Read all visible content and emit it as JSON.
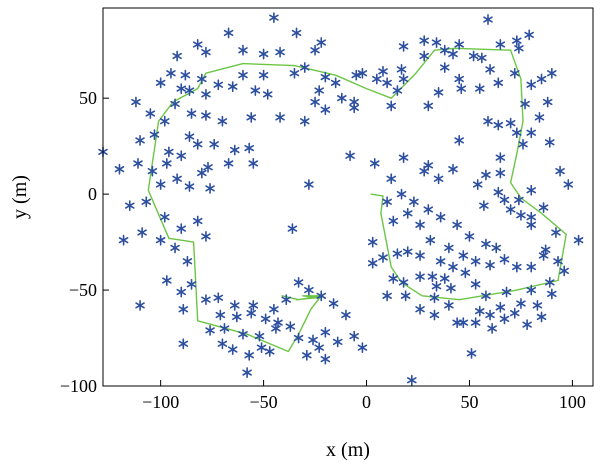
{
  "chart_data": {
    "type": "scatter",
    "title": "",
    "xlabel": "x (m)",
    "ylabel": "y (m)",
    "xlim": [
      -128,
      110
    ],
    "ylim": [
      -100,
      97
    ],
    "xticks": [
      -100,
      -50,
      0,
      50,
      100
    ],
    "yticks": [
      -100,
      -50,
      0,
      50
    ],
    "tick_labels": {
      "x": [
        "−100",
        "−50",
        "0",
        "50",
        "100"
      ],
      "y": [
        "−100",
        "−50",
        "0",
        "50"
      ]
    },
    "grid": false,
    "legend": "none",
    "colors": {
      "points": "#2d4f9f",
      "path": "#6cc644"
    },
    "series": [
      {
        "marker": "asterisk",
        "points": [
          [
            -45,
            92
          ],
          [
            -67,
            84
          ],
          [
            -34,
            84
          ],
          [
            -22,
            79
          ],
          [
            -82,
            78
          ],
          [
            -92,
            72
          ],
          [
            -78,
            74
          ],
          [
            -60,
            75
          ],
          [
            -50,
            73
          ],
          [
            -42,
            74
          ],
          [
            -25,
            75
          ],
          [
            -95,
            63
          ],
          [
            -88,
            62
          ],
          [
            -80,
            60
          ],
          [
            -60,
            62
          ],
          [
            -50,
            62
          ],
          [
            -35,
            63
          ],
          [
            -30,
            66
          ],
          [
            -15,
            58
          ],
          [
            -5,
            62
          ],
          [
            -20,
            61
          ],
          [
            5,
            60
          ],
          [
            18,
            60
          ],
          [
            10,
            58
          ],
          [
            38,
            66
          ],
          [
            45,
            60
          ],
          [
            -100,
            58
          ],
          [
            -90,
            55
          ],
          [
            -86,
            54
          ],
          [
            -78,
            52
          ],
          [
            -72,
            57
          ],
          [
            -65,
            56
          ],
          [
            -54,
            54
          ],
          [
            -48,
            52
          ],
          [
            -23,
            54
          ],
          [
            -12,
            50
          ],
          [
            -6,
            48
          ],
          [
            -93,
            47
          ],
          [
            -85,
            42
          ],
          [
            -78,
            41
          ],
          [
            -70,
            38
          ],
          [
            -56,
            40
          ],
          [
            -42,
            40
          ],
          [
            -30,
            38
          ],
          [
            -20,
            44
          ],
          [
            -6,
            45
          ],
          [
            12,
            46
          ],
          [
            -112,
            48
          ],
          [
            -105,
            42
          ],
          [
            -98,
            38
          ],
          [
            -86,
            30
          ],
          [
            -74,
            26
          ],
          [
            -64,
            23
          ],
          [
            -57,
            24
          ],
          [
            -110,
            28
          ],
          [
            -103,
            31
          ],
          [
            -96,
            22
          ],
          [
            -90,
            20
          ],
          [
            -82,
            26
          ],
          [
            -77,
            14
          ],
          [
            -55,
            16
          ],
          [
            -67,
            16
          ],
          [
            -128,
            22
          ],
          [
            -120,
            13
          ],
          [
            -111,
            16
          ],
          [
            -104,
            12
          ],
          [
            -97,
            16
          ],
          [
            -92,
            8
          ],
          [
            -86,
            4
          ],
          [
            -80,
            11
          ],
          [
            -76,
            3
          ],
          [
            -100,
            5
          ],
          [
            -107,
            -4
          ],
          [
            -98,
            -12
          ],
          [
            -90,
            -18
          ],
          [
            -82,
            -14
          ],
          [
            -28,
            5
          ],
          [
            -8,
            20
          ],
          [
            4,
            16
          ],
          [
            -115,
            -6
          ],
          [
            -118,
            -24
          ],
          [
            -109,
            -20
          ],
          [
            -100,
            -24
          ],
          [
            -93,
            -28
          ],
          [
            -87,
            -35
          ],
          [
            -78,
            -22
          ],
          [
            -85,
            -47
          ],
          [
            -97,
            -45
          ],
          [
            -90,
            -51
          ],
          [
            -110,
            -58
          ],
          [
            -89,
            -60
          ],
          [
            -78,
            -55
          ],
          [
            -72,
            -54
          ],
          [
            -64,
            -58
          ],
          [
            -55,
            -58
          ],
          [
            -45,
            -60
          ],
          [
            -36,
            -18
          ],
          [
            -33,
            -46
          ],
          [
            -28,
            -50
          ],
          [
            -22,
            -53
          ],
          [
            -16,
            -57
          ],
          [
            -10,
            -63
          ],
          [
            -6,
            -74
          ],
          [
            -2,
            -80
          ],
          [
            -71,
            -63
          ],
          [
            -63,
            -64
          ],
          [
            -56,
            -62
          ],
          [
            -49,
            -65
          ],
          [
            -43,
            -67
          ],
          [
            -76,
            -71
          ],
          [
            -69,
            -70
          ],
          [
            -60,
            -73
          ],
          [
            -52,
            -74
          ],
          [
            -44,
            -70
          ],
          [
            -37,
            -69
          ],
          [
            -33,
            -75
          ],
          [
            -26,
            -76
          ],
          [
            -20,
            -72
          ],
          [
            -14,
            -77
          ],
          [
            -29,
            -84
          ],
          [
            -23,
            -80
          ],
          [
            -47,
            -82
          ],
          [
            -65,
            -81
          ],
          [
            -57,
            -84
          ],
          [
            -51,
            -80
          ],
          [
            -70,
            -78
          ],
          [
            -89,
            -78
          ],
          [
            -58,
            -93
          ],
          [
            -20,
            -86
          ],
          [
            22,
            -97
          ],
          [
            -39,
            -55
          ],
          [
            -2,
            63
          ],
          [
            8,
            64
          ],
          [
            15,
            54
          ],
          [
            -25,
            48
          ],
          [
            17,
            65
          ],
          [
            28,
            72
          ],
          [
            34,
            79
          ],
          [
            45,
            78
          ],
          [
            56,
            71
          ],
          [
            65,
            78
          ],
          [
            73,
            80
          ],
          [
            79,
            83
          ],
          [
            59,
            91
          ],
          [
            42,
            73
          ],
          [
            28,
            80
          ],
          [
            18,
            77
          ],
          [
            38,
            75
          ],
          [
            52,
            72
          ],
          [
            60,
            65
          ],
          [
            74,
            76
          ],
          [
            90,
            63
          ],
          [
            85,
            60
          ],
          [
            80,
            57
          ],
          [
            72,
            63
          ],
          [
            64,
            58
          ],
          [
            55,
            55
          ],
          [
            46,
            55
          ],
          [
            35,
            53
          ],
          [
            30,
            46
          ],
          [
            77,
            47
          ],
          [
            88,
            48
          ],
          [
            84,
            40
          ],
          [
            70,
            37
          ],
          [
            64,
            36
          ],
          [
            59,
            38
          ],
          [
            73,
            32
          ],
          [
            80,
            32
          ],
          [
            89,
            27
          ],
          [
            76,
            26
          ],
          [
            94,
            12
          ],
          [
            65,
            19
          ],
          [
            45,
            28
          ],
          [
            30,
            15
          ],
          [
            12,
            8
          ],
          [
            18,
            19
          ],
          [
            28,
            12
          ],
          [
            35,
            8
          ],
          [
            42,
            13
          ],
          [
            58,
            10
          ],
          [
            64,
            1
          ],
          [
            67,
            -3
          ],
          [
            74,
            -3
          ],
          [
            80,
            -12
          ],
          [
            86,
            -7
          ],
          [
            98,
            5
          ],
          [
            80,
            2
          ],
          [
            65,
            11
          ],
          [
            54,
            5
          ],
          [
            57,
            -6
          ],
          [
            70,
            -8
          ],
          [
            75,
            -11
          ],
          [
            80,
            -16
          ],
          [
            92,
            -20
          ],
          [
            103,
            -24
          ],
          [
            87,
            -29
          ],
          [
            10,
            -4
          ],
          [
            17,
            0
          ],
          [
            23,
            -4
          ],
          [
            30,
            -8
          ],
          [
            36,
            -12
          ],
          [
            44,
            -16
          ],
          [
            50,
            -22
          ],
          [
            58,
            -26
          ],
          [
            63,
            -28
          ],
          [
            67,
            -34
          ],
          [
            73,
            -38
          ],
          [
            80,
            -38
          ],
          [
            86,
            -32
          ],
          [
            93,
            -35
          ],
          [
            96,
            -40
          ],
          [
            89,
            -46
          ],
          [
            80,
            -50
          ],
          [
            68,
            -51
          ],
          [
            58,
            -53
          ],
          [
            13,
            -14
          ],
          [
            20,
            -10
          ],
          [
            26,
            -16
          ],
          [
            31,
            -24
          ],
          [
            40,
            -28
          ],
          [
            47,
            -32
          ],
          [
            53,
            -35
          ],
          [
            60,
            -37
          ],
          [
            3,
            -25
          ],
          [
            3,
            -36
          ],
          [
            8,
            -33
          ],
          [
            15,
            -31
          ],
          [
            20,
            -30
          ],
          [
            26,
            -32
          ],
          [
            36,
            -35
          ],
          [
            42,
            -38
          ],
          [
            48,
            -41
          ],
          [
            53,
            -47
          ],
          [
            13,
            -44
          ],
          [
            18,
            -46
          ],
          [
            26,
            -43
          ],
          [
            32,
            -43
          ],
          [
            38,
            -44
          ],
          [
            55,
            -61
          ],
          [
            60,
            -63
          ],
          [
            65,
            -59
          ],
          [
            72,
            -62
          ],
          [
            78,
            -68
          ],
          [
            85,
            -64
          ],
          [
            26,
            -60
          ],
          [
            33,
            -63
          ],
          [
            40,
            -58
          ],
          [
            47,
            -67
          ],
          [
            53,
            -67
          ],
          [
            61,
            -70
          ],
          [
            51,
            -83
          ],
          [
            44,
            -67
          ],
          [
            19,
            -53
          ],
          [
            10,
            -53
          ],
          [
            33,
            -54
          ],
          [
            67,
            -65
          ],
          [
            75,
            -57
          ],
          [
            83,
            -58
          ],
          [
            90,
            -52
          ],
          [
            41,
            -49
          ],
          [
            34,
            -48
          ]
        ]
      },
      {
        "name": "",
        "line": true,
        "points": [
          [
            -106,
            2
          ],
          [
            -96,
            -23
          ],
          [
            -84,
            -25
          ],
          [
            -83,
            -45
          ],
          [
            -82,
            -66
          ],
          [
            -58,
            -73
          ],
          [
            -38,
            -82
          ],
          [
            -33,
            -73
          ],
          [
            -27,
            -60
          ],
          [
            -22,
            -53
          ],
          [
            -31,
            -53
          ],
          [
            -24,
            -54
          ],
          [
            -34,
            -55
          ],
          [
            -33,
            -55
          ],
          [
            -41,
            -53
          ],
          [
            -41,
            -53
          ],
          [
            -33,
            -55
          ],
          [
            -22,
            -53
          ],
          [
            -106,
            2
          ],
          [
            -101,
            38
          ],
          [
            -94,
            48
          ],
          [
            -82,
            55
          ],
          [
            -78,
            63
          ],
          [
            -60,
            68
          ],
          [
            -35,
            67
          ],
          [
            -15,
            62
          ],
          [
            0,
            55
          ],
          [
            12,
            50
          ],
          [
            24,
            63
          ],
          [
            33,
            75
          ],
          [
            43,
            76
          ],
          [
            70,
            75
          ],
          [
            75,
            60
          ],
          [
            76,
            38
          ],
          [
            73,
            21
          ],
          [
            70,
            6
          ],
          [
            75,
            -2
          ],
          [
            85,
            -10
          ],
          [
            97,
            -21
          ],
          [
            93,
            -45
          ],
          [
            73,
            -50
          ],
          [
            45,
            -55
          ],
          [
            27,
            -53
          ],
          [
            17,
            -46
          ],
          [
            12,
            -38
          ],
          [
            7,
            -10
          ],
          [
            8,
            -1
          ],
          [
            2,
            0
          ]
        ]
      }
    ]
  }
}
